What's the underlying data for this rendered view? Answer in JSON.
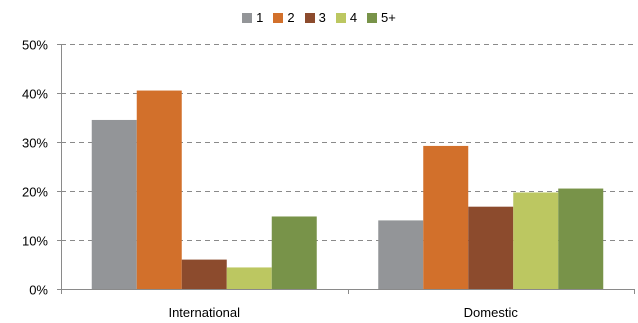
{
  "chart_data": {
    "type": "bar",
    "categories": [
      "International",
      "Domestic"
    ],
    "series": [
      {
        "name": "1",
        "color": "#939598",
        "values": [
          34.5,
          14.0
        ]
      },
      {
        "name": "2",
        "color": "#d2702b",
        "values": [
          40.5,
          29.2
        ]
      },
      {
        "name": "3",
        "color": "#8c4b2d",
        "values": [
          6.0,
          16.8
        ]
      },
      {
        "name": "4",
        "color": "#bcc761",
        "values": [
          4.4,
          19.7
        ]
      },
      {
        "name": "5+",
        "color": "#789349",
        "values": [
          14.8,
          20.5
        ]
      }
    ],
    "ylim": [
      0,
      50
    ],
    "yticks": [
      "0%",
      "10%",
      "20%",
      "30%",
      "40%",
      "50%"
    ],
    "ytick_values": [
      0,
      10,
      20,
      30,
      40,
      50
    ],
    "title": "",
    "xlabel": "",
    "ylabel": "",
    "legend": "top-center",
    "grid": "horizontal dashed"
  }
}
